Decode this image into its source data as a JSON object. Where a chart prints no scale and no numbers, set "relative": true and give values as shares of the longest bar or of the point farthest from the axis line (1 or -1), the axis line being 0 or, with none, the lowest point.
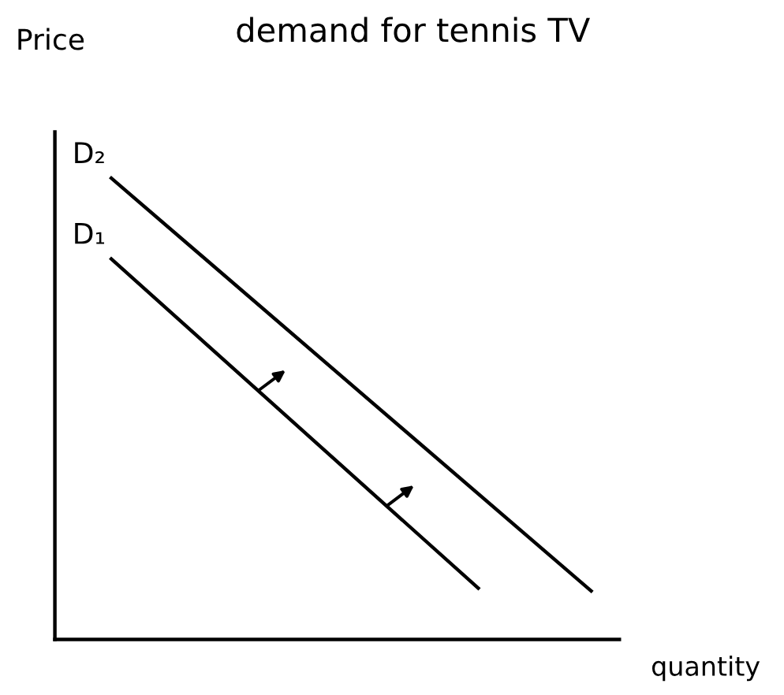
{
  "chart_data": {
    "type": "line",
    "title": "demand for tennis TV",
    "xlabel": "quantity",
    "ylabel": "Price",
    "relative": true,
    "legend": false,
    "marker": "none",
    "line_style": "solid",
    "categories": [
      null,
      null,
      null,
      null,
      null,
      null,
      null,
      null,
      null,
      null,
      null,
      null,
      null,
      null,
      null,
      null,
      null,
      null,
      null,
      null,
      null
    ],
    "series": [
      {
        "name": "D₁",
        "color": "#000000",
        "values": [
          null,
          null,
          0.825,
          null,
          null,
          null,
          null,
          null,
          null,
          null,
          null,
          null,
          null,
          null,
          null,
          0.111,
          null,
          null,
          null,
          null,
          null
        ]
      },
      {
        "name": "D₂",
        "color": "#000000",
        "values": [
          null,
          null,
          1.0,
          null,
          null,
          null,
          null,
          null,
          null,
          null,
          null,
          null,
          null,
          null,
          null,
          null,
          null,
          null,
          null,
          0.105,
          null
        ]
      }
    ]
  }
}
